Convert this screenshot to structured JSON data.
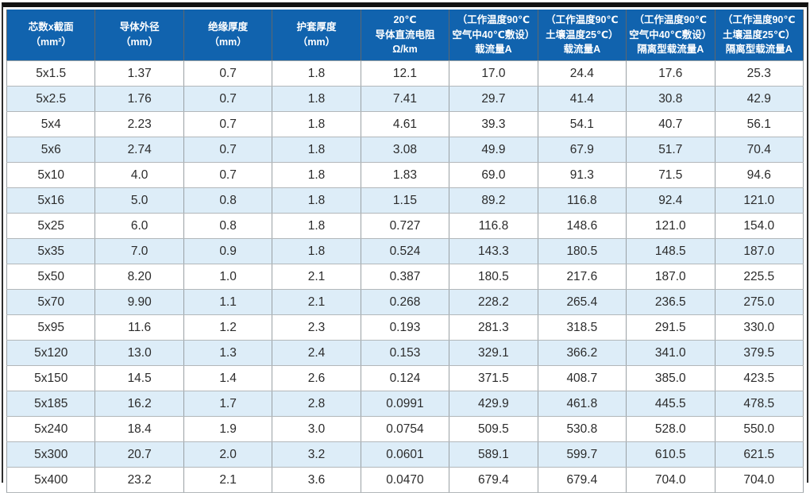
{
  "colors": {
    "header_bg": "#1163ae",
    "header_text": "#ffffff",
    "row_bg": "#ffffff",
    "row_alt_bg": "#ddedf8",
    "grid_line": "#9aa1a5",
    "frame_top": "#121212",
    "frame_side": "#2e2e2e"
  },
  "table": {
    "headers": [
      "芯数x截面\n（mm²）",
      "导体外径\n（mm）",
      "绝缘厚度\n（mm）",
      "护套厚度\n（mm）",
      "20℃\n导体直流电阻\nΩ/km",
      "（工作温度90℃\n空气中40℃敷设）\n载流量A",
      "（工作温度90℃\n土壤温度25℃）\n载流量A",
      "（工作温度90℃\n空气中40℃敷设）\n隔离型载流量A",
      "（工作温度90℃\n土壤温度25℃）\n隔离型载流量A"
    ],
    "rows": [
      [
        "5x1.5",
        "1.37",
        "0.7",
        "1.8",
        "12.1",
        "17.0",
        "24.4",
        "17.6",
        "25.3"
      ],
      [
        "5x2.5",
        "1.76",
        "0.7",
        "1.8",
        "7.41",
        "29.7",
        "41.4",
        "30.8",
        "42.9"
      ],
      [
        "5x4",
        "2.23",
        "0.7",
        "1.8",
        "4.61",
        "39.3",
        "54.1",
        "40.7",
        "56.1"
      ],
      [
        "5x6",
        "2.74",
        "0.7",
        "1.8",
        "3.08",
        "49.9",
        "67.9",
        "51.7",
        "70.4"
      ],
      [
        "5x10",
        "4.0",
        "0.7",
        "1.8",
        "1.83",
        "69.0",
        "91.3",
        "71.5",
        "94.6"
      ],
      [
        "5x16",
        "5.0",
        "0.8",
        "1.8",
        "1.15",
        "89.2",
        "116.8",
        "92.4",
        "121.0"
      ],
      [
        "5x25",
        "6.0",
        "0.8",
        "1.8",
        "0.727",
        "116.8",
        "148.6",
        "121.0",
        "154.0"
      ],
      [
        "5x35",
        "7.0",
        "0.9",
        "1.8",
        "0.524",
        "143.3",
        "180.5",
        "148.5",
        "187.0"
      ],
      [
        "5x50",
        "8.20",
        "1.0",
        "2.1",
        "0.387",
        "180.5",
        "217.6",
        "187.0",
        "225.5"
      ],
      [
        "5x70",
        "9.90",
        "1.1",
        "2.1",
        "0.268",
        "228.2",
        "265.4",
        "236.5",
        "275.0"
      ],
      [
        "5x95",
        "11.6",
        "1.2",
        "2.3",
        "0.193",
        "281.3",
        "318.5",
        "291.5",
        "330.0"
      ],
      [
        "5x120",
        "13.0",
        "1.3",
        "2.4",
        "0.153",
        "329.1",
        "366.2",
        "341.0",
        "379.5"
      ],
      [
        "5x150",
        "14.5",
        "1.4",
        "2.6",
        "0.124",
        "371.5",
        "408.7",
        "385.0",
        "423.5"
      ],
      [
        "5x185",
        "16.2",
        "1.7",
        "2.8",
        "0.0991",
        "429.9",
        "461.8",
        "445.5",
        "478.5"
      ],
      [
        "5x240",
        "18.4",
        "1.9",
        "3.0",
        "0.0754",
        "509.5",
        "530.8",
        "528.0",
        "550.0"
      ],
      [
        "5x300",
        "20.7",
        "2.0",
        "3.2",
        "0.0601",
        "589.1",
        "599.7",
        "610.5",
        "621.5"
      ],
      [
        "5x400",
        "23.2",
        "2.1",
        "3.6",
        "0.0470",
        "679.4",
        "679.4",
        "704.0",
        "704.0"
      ]
    ]
  }
}
